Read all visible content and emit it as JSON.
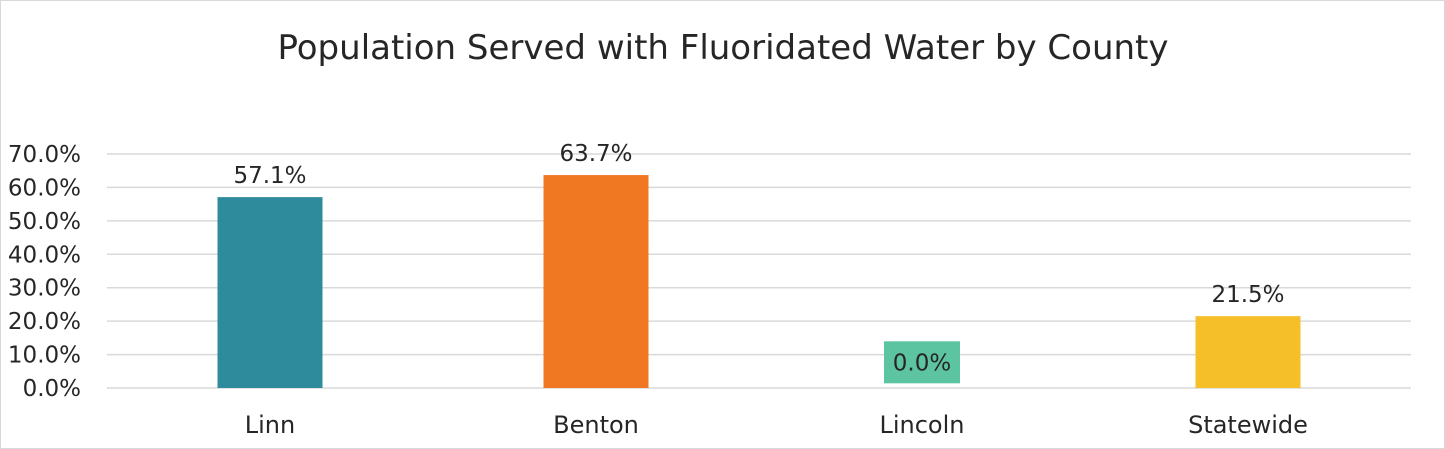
{
  "chart_data": {
    "type": "bar",
    "title": "Population Served with Fluoridated Water by County",
    "xlabel": "",
    "ylabel": "",
    "categories": [
      "Linn",
      "Benton",
      "Lincoln",
      "Statewide"
    ],
    "values": [
      57.1,
      63.7,
      0.0,
      21.5
    ],
    "data_labels": [
      "57.1%",
      "63.7%",
      "0.0%",
      "21.5%"
    ],
    "colors": [
      "#2e8b9c",
      "#f07823",
      "#5cc4a0",
      "#f5bf2a"
    ],
    "ylim": [
      0,
      70
    ],
    "yticks": [
      0,
      10,
      20,
      30,
      40,
      50,
      60,
      70
    ],
    "ytick_labels": [
      "0.0%",
      "10.0%",
      "20.0%",
      "30.0%",
      "40.0%",
      "50.0%",
      "60.0%",
      "70.0%"
    ],
    "grid": true,
    "legend": "none",
    "label_box_category": "Lincoln"
  }
}
